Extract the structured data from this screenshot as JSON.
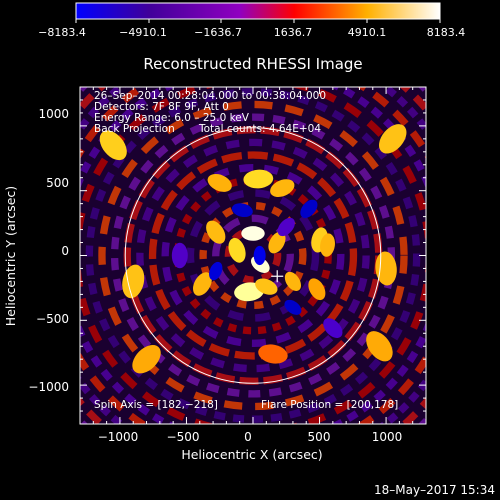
{
  "colorbar": {
    "tick_labels": [
      "−8183.4",
      "−4910.1",
      "−1636.7",
      "1636.7",
      "4910.1",
      "8183.4"
    ],
    "range": [
      -8183.4,
      8183.4
    ],
    "colormap": [
      "#0000ff",
      "#40009a",
      "#9000c0",
      "#ff0000",
      "#ffb000",
      "#ffffff"
    ]
  },
  "footer": {
    "date": "18–May–2017 15:34"
  },
  "chart_data": {
    "type": "heatmap",
    "title": "Reconstructed RHESSI Image",
    "xlabel": "Heliocentric X (arcsec)",
    "ylabel": "Heliocentric Y (arcsec)",
    "xlim": [
      -1300,
      1300
    ],
    "ylim": [
      -1300,
      1300
    ],
    "xticks": [
      -1000,
      -500,
      0,
      500,
      1000
    ],
    "xtick_labels": [
      "−1000",
      "−500",
      "0",
      "500",
      "1000"
    ],
    "yticks": [
      -1000,
      -500,
      0,
      500,
      1000
    ],
    "ytick_labels": [
      "−1000",
      "−500",
      "0",
      "500",
      "1000"
    ],
    "info_lines": [
      "26–Sep–2014 00:28:04.000 to 00:38:04.000",
      "Detectors: 7F 8F 9F, Att 0",
      "Energy Range: 6.0 – 25.0 keV",
      "Back Projection",
      "Total counts: 4.64E+04"
    ],
    "spin_axis_label": "Spin Axis = [182,−218]",
    "flare_position_label": "Flare Position = [200,178]",
    "spin_axis": [
      182,
      -218
    ],
    "flare_position": [
      200,
      178
    ],
    "solar_limb_radius": 960,
    "marker_position": [
      182,
      -160
    ],
    "blobs": [
      {
        "x": 0,
        "y": 170,
        "v": 8000,
        "s": 55
      },
      {
        "x": 55,
        "y": -70,
        "v": 7800,
        "s": 50
      },
      {
        "x": -120,
        "y": 40,
        "v": 6500,
        "s": 60
      },
      {
        "x": -30,
        "y": -280,
        "v": 7000,
        "s": 70
      },
      {
        "x": 180,
        "y": 100,
        "v": 5000,
        "s": 55
      },
      {
        "x": 500,
        "y": 120,
        "v": 6000,
        "s": 60
      },
      {
        "x": 560,
        "y": 80,
        "v": 5000,
        "s": 55
      },
      {
        "x": 100,
        "y": -240,
        "v": 5500,
        "s": 55
      },
      {
        "x": 300,
        "y": -200,
        "v": 5000,
        "s": 50
      },
      {
        "x": 480,
        "y": -260,
        "v": 4200,
        "s": 55
      },
      {
        "x": -280,
        "y": 180,
        "v": 5200,
        "s": 60
      },
      {
        "x": -380,
        "y": -220,
        "v": 5000,
        "s": 60
      },
      {
        "x": 40,
        "y": 590,
        "v": 6500,
        "s": 70
      },
      {
        "x": 220,
        "y": 520,
        "v": 5000,
        "s": 60
      },
      {
        "x": -250,
        "y": 560,
        "v": 4800,
        "s": 60
      },
      {
        "x": -1050,
        "y": 850,
        "v": 6000,
        "s": 80
      },
      {
        "x": 1050,
        "y": 900,
        "v": 5500,
        "s": 80
      },
      {
        "x": -900,
        "y": -200,
        "v": 5500,
        "s": 80
      },
      {
        "x": 1000,
        "y": -100,
        "v": 5000,
        "s": 80
      },
      {
        "x": 950,
        "y": -700,
        "v": 4500,
        "s": 80
      },
      {
        "x": -800,
        "y": -800,
        "v": 4500,
        "s": 80
      },
      {
        "x": 150,
        "y": -760,
        "v": 4000,
        "s": 70
      },
      {
        "x": 50,
        "y": 0,
        "v": -7000,
        "s": 45
      },
      {
        "x": -280,
        "y": -120,
        "v": -6000,
        "s": 45
      },
      {
        "x": 420,
        "y": 360,
        "v": -5000,
        "s": 50
      },
      {
        "x": -80,
        "y": 350,
        "v": -5000,
        "s": 50
      },
      {
        "x": 600,
        "y": -560,
        "v": -4500,
        "s": 55
      },
      {
        "x": 300,
        "y": -400,
        "v": -5000,
        "s": 45
      },
      {
        "x": -550,
        "y": 0,
        "v": -4000,
        "s": 60
      },
      {
        "x": 250,
        "y": 220,
        "v": -4000,
        "s": 50
      }
    ]
  }
}
